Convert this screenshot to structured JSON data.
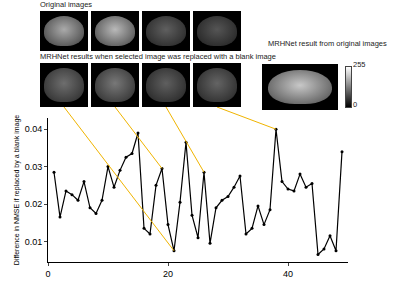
{
  "chart_data": {
    "type": "line",
    "y_label": "Difference in NMSE if replaced by a blank image",
    "annotations": [
      "Original images",
      "MRHNet results when selected image was replaced with a blank image",
      "MRHNet result from original images"
    ],
    "colorbar": {
      "range": [
        0,
        255
      ],
      "ticks": [
        0,
        255
      ]
    },
    "x": [
      1,
      2,
      3,
      4,
      5,
      6,
      7,
      8,
      9,
      10,
      11,
      12,
      13,
      14,
      15,
      16,
      17,
      18,
      19,
      20,
      21,
      22,
      23,
      24,
      25,
      26,
      27,
      28,
      29,
      30,
      31,
      32,
      33,
      34,
      35,
      36,
      37,
      38,
      39,
      40,
      41,
      42,
      43,
      44,
      45,
      46,
      47,
      48,
      49
    ],
    "values": [
      0.0285,
      0.0165,
      0.0235,
      0.0225,
      0.021,
      0.026,
      0.019,
      0.0175,
      0.021,
      0.03,
      0.0245,
      0.029,
      0.0325,
      0.0335,
      0.039,
      0.0135,
      0.012,
      0.025,
      0.0295,
      0.0145,
      0.0075,
      0.0205,
      0.0365,
      0.017,
      0.011,
      0.0285,
      0.0095,
      0.019,
      0.021,
      0.022,
      0.0245,
      0.0275,
      0.012,
      0.0135,
      0.0195,
      0.0145,
      0.0185,
      0.04,
      0.026,
      0.024,
      0.0235,
      0.028,
      0.0245,
      0.0255,
      0.0065,
      0.008,
      0.0115,
      0.0075,
      0.034
    ],
    "highlight_x": [
      21,
      19,
      26,
      38
    ],
    "color": "#000000",
    "marker": "circle",
    "xlim": [
      0,
      50
    ],
    "xticks": [
      0,
      20,
      40
    ],
    "ylim": [
      0.0045,
      0.043
    ],
    "yticks": [
      0.01,
      0.02,
      0.03,
      0.04
    ],
    "grid": false
  }
}
